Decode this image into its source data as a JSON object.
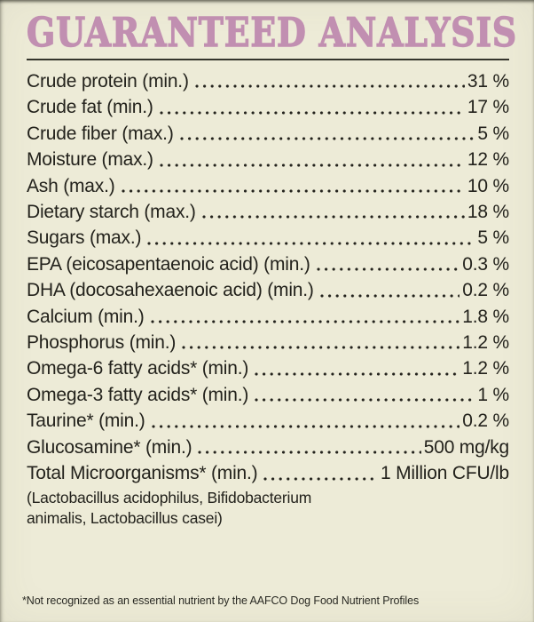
{
  "colors": {
    "background": "#edebd7",
    "title_pink": "#c18fb1",
    "text": "#23221c",
    "rule": "#35352c"
  },
  "label": {
    "title": "GUARANTEED ANALYSIS",
    "rows": [
      {
        "name": "Crude protein (min.)",
        "value": "31 %"
      },
      {
        "name": "Crude fat (min.)",
        "value": "17 %"
      },
      {
        "name": "Crude fiber (max.)",
        "value": "5 %"
      },
      {
        "name": "Moisture (max.)",
        "value": "12 %"
      },
      {
        "name": "Ash (max.)",
        "value": "10 %"
      },
      {
        "name": "Dietary starch (max.)",
        "value": "18 %"
      },
      {
        "name": "Sugars (max.)",
        "value": "5 %"
      },
      {
        "name": "EPA (eicosapentaenoic acid) (min.)",
        "value": "0.3 %"
      },
      {
        "name": "DHA (docosahexaenoic acid) (min.)",
        "value": "0.2 %"
      },
      {
        "name": "Calcium (min.)",
        "value": "1.8 %"
      },
      {
        "name": "Phosphorus (min.)",
        "value": "1.2 %"
      },
      {
        "name": "Omega-6 fatty acids* (min.)",
        "value": "1.2 %"
      },
      {
        "name": "Omega-3 fatty acids* (min.)",
        "value": "1 %"
      },
      {
        "name": "Taurine* (min.)",
        "value": "0.2 %"
      },
      {
        "name": "Glucosamine* (min.)",
        "value": "500 mg/kg"
      },
      {
        "name": "Total Microorganisms* (min.)",
        "value": "1 Million CFU/lb"
      }
    ],
    "species_note": "(Lactobacillus acidophilus, Bifidobacterium animalis, Lactobacillus casei)",
    "footnote": "*Not recognized as an essential nutrient by the AAFCO Dog Food Nutrient Profiles"
  }
}
